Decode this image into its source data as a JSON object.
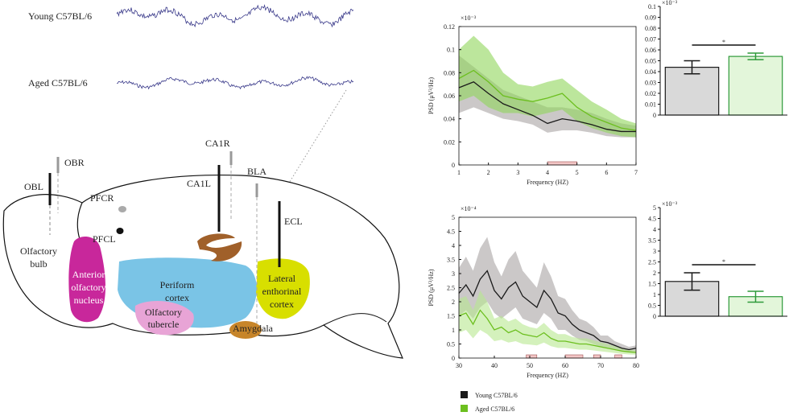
{
  "diagram": {
    "traces": [
      "Young  C57BL/6",
      "Aged C57BL/6"
    ],
    "electrodes": [
      "OBR",
      "OBL",
      "CA1R",
      "CA1L",
      "BLA",
      "ECL",
      "PFCR",
      "PFCL"
    ],
    "regions": {
      "olfactory_bulb": [
        "Olfactory",
        "bulb"
      ],
      "anterior_olfactory_nucleus": [
        "Anterior",
        "olfactory",
        "nucleus"
      ],
      "periform_cortex": [
        "Periform",
        "cortex"
      ],
      "olfactory_tubercle": [
        "Olfactory",
        "tubercle"
      ],
      "amygdala": [
        "Amygdala"
      ],
      "lateral_enthorinal_cortex": [
        "Lateral",
        "enthorinal",
        "cortex"
      ]
    }
  },
  "chart_data": [
    {
      "type": "line",
      "scale_label": "×10⁻³",
      "xlabel": "Frequency (HZ)",
      "ylabel": "PSD (μV²/Hz)",
      "x": [
        1,
        1.5,
        2,
        2.5,
        3,
        3.5,
        4,
        4.5,
        5,
        5.5,
        6,
        6.5,
        7
      ],
      "xlim": [
        1,
        7
      ],
      "xticks": [
        1,
        2,
        3,
        4,
        5,
        6,
        7
      ],
      "ylim": [
        0,
        0.12
      ],
      "yticks": [
        0,
        0.02,
        0.04,
        0.06,
        0.08,
        0.1,
        0.12
      ],
      "significant_ranges": [
        [
          4,
          5
        ]
      ],
      "series": [
        {
          "name": "Young C57BL/6",
          "color": "#1a1a1a",
          "band_color": "#a9a3a3",
          "values": [
            0.067,
            0.072,
            0.062,
            0.053,
            0.048,
            0.043,
            0.036,
            0.04,
            0.038,
            0.035,
            0.031,
            0.029,
            0.029
          ],
          "band_upper": [
            0.095,
            0.085,
            0.075,
            0.065,
            0.06,
            0.055,
            0.05,
            0.05,
            0.048,
            0.045,
            0.04,
            0.036,
            0.034
          ],
          "band_lower": [
            0.045,
            0.05,
            0.045,
            0.04,
            0.038,
            0.035,
            0.028,
            0.03,
            0.03,
            0.028,
            0.025,
            0.024,
            0.024
          ]
        },
        {
          "name": "Aged C57BL/6",
          "color": "#6cbf1f",
          "band_color": "#8fd65a",
          "values": [
            0.075,
            0.082,
            0.072,
            0.06,
            0.057,
            0.055,
            0.058,
            0.062,
            0.05,
            0.042,
            0.037,
            0.032,
            0.03
          ],
          "band_upper": [
            0.1,
            0.112,
            0.1,
            0.08,
            0.07,
            0.068,
            0.072,
            0.075,
            0.065,
            0.055,
            0.048,
            0.04,
            0.036
          ],
          "band_lower": [
            0.055,
            0.06,
            0.05,
            0.045,
            0.045,
            0.042,
            0.045,
            0.048,
            0.038,
            0.032,
            0.028,
            0.025,
            0.024
          ]
        }
      ]
    },
    {
      "type": "bar",
      "scale_label": "×10⁻³",
      "categories": [
        null,
        null
      ],
      "values": [
        0.044,
        0.054
      ],
      "errors": [
        0.006,
        0.003
      ],
      "colors": [
        "#d9d9d9",
        "#e3f6da"
      ],
      "edge_colors": [
        "#1a1a1a",
        "#2e9a3a"
      ],
      "ylim": [
        0,
        0.1
      ],
      "yticks": [
        0,
        0.01,
        0.02,
        0.03,
        0.04,
        0.05,
        0.06,
        0.07,
        0.08,
        0.09,
        0.1
      ],
      "significance_label": "*"
    },
    {
      "type": "line",
      "scale_label": "×10⁻⁴",
      "xlabel": "Frequency (HZ)",
      "ylabel": "PSD (μV²/Hz)",
      "x": [
        30,
        32,
        34,
        36,
        38,
        40,
        42,
        44,
        46,
        48,
        50,
        52,
        54,
        56,
        58,
        60,
        62,
        64,
        66,
        68,
        70,
        72,
        74,
        76,
        78,
        80
      ],
      "xlim": [
        30,
        80
      ],
      "xticks": [
        30,
        40,
        50,
        60,
        70,
        80
      ],
      "ylim": [
        0,
        5
      ],
      "yticks": [
        0,
        0.5,
        1,
        1.5,
        2,
        2.5,
        3,
        3.5,
        4,
        4.5,
        5
      ],
      "significant_ranges": [
        [
          49,
          52
        ],
        [
          60,
          65
        ],
        [
          68,
          70
        ],
        [
          74,
          76
        ]
      ],
      "series": [
        {
          "color": "#1a1a1a",
          "band_color": "#a9a3a3",
          "values": [
            2.3,
            2.6,
            2.2,
            2.8,
            3.1,
            2.4,
            2.1,
            2.5,
            2.7,
            2.2,
            2.0,
            1.8,
            2.4,
            2.1,
            1.6,
            1.5,
            1.2,
            1.0,
            0.9,
            0.8,
            0.6,
            0.55,
            0.45,
            0.35,
            0.3,
            0.35
          ],
          "band_upper": [
            3.2,
            3.6,
            3.1,
            3.9,
            4.3,
            3.4,
            2.9,
            3.5,
            3.8,
            3.1,
            2.8,
            2.5,
            3.4,
            2.9,
            2.2,
            2.1,
            1.7,
            1.4,
            1.3,
            1.1,
            0.8,
            0.8,
            0.6,
            0.5,
            0.4,
            0.45
          ],
          "band_lower": [
            1.5,
            1.7,
            1.4,
            1.8,
            2.0,
            1.6,
            1.4,
            1.6,
            1.8,
            1.4,
            1.3,
            1.2,
            1.6,
            1.4,
            1.0,
            1.0,
            0.8,
            0.65,
            0.6,
            0.5,
            0.4,
            0.35,
            0.3,
            0.22,
            0.2,
            0.22
          ]
        },
        {
          "color": "#6cbf1f",
          "band_color": "#b7e88f",
          "values": [
            1.5,
            1.6,
            1.2,
            1.7,
            1.4,
            1.0,
            1.1,
            0.9,
            1.0,
            0.85,
            0.8,
            0.75,
            0.9,
            0.7,
            0.6,
            0.6,
            0.55,
            0.5,
            0.5,
            0.45,
            0.4,
            0.35,
            0.3,
            0.25,
            0.22,
            0.2
          ],
          "band_upper": [
            2.1,
            2.2,
            1.7,
            2.4,
            2.0,
            1.4,
            1.5,
            1.3,
            1.4,
            1.2,
            1.1,
            1.05,
            1.25,
            1.0,
            0.85,
            0.85,
            0.75,
            0.7,
            0.7,
            0.63,
            0.56,
            0.5,
            0.42,
            0.35,
            0.3,
            0.28
          ],
          "band_lower": [
            0.9,
            1.0,
            0.7,
            1.0,
            0.85,
            0.6,
            0.65,
            0.55,
            0.6,
            0.5,
            0.48,
            0.45,
            0.55,
            0.42,
            0.36,
            0.36,
            0.33,
            0.3,
            0.3,
            0.27,
            0.24,
            0.21,
            0.18,
            0.15,
            0.13,
            0.12
          ]
        }
      ]
    },
    {
      "type": "bar",
      "scale_label": "×10⁻³",
      "categories": [
        null,
        null
      ],
      "values": [
        1.6,
        0.9
      ],
      "errors": [
        0.4,
        0.25
      ],
      "colors": [
        "#d9d9d9",
        "#e3f6da"
      ],
      "edge_colors": [
        "#1a1a1a",
        "#2e9a3a"
      ],
      "ylim": [
        0,
        5
      ],
      "yticks": [
        0,
        0.5,
        1,
        1.5,
        2,
        2.5,
        3,
        3.5,
        4,
        4.5,
        5
      ],
      "significance_label": "*"
    }
  ]
}
